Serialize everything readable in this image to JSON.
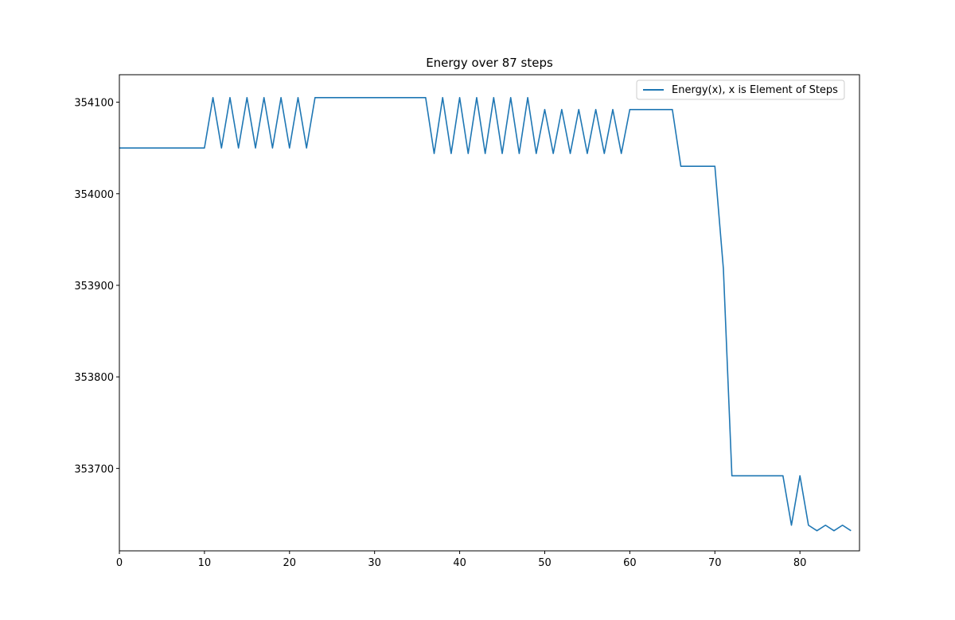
{
  "chart_data": {
    "type": "line",
    "title": "Energy over  87 steps",
    "xlabel": "",
    "ylabel": "",
    "xlim": [
      0,
      87
    ],
    "ylim": [
      353610,
      354130
    ],
    "x_ticks": [
      0,
      10,
      20,
      30,
      40,
      50,
      60,
      70,
      80
    ],
    "y_ticks": [
      353700,
      353800,
      353900,
      354000,
      354100
    ],
    "grid": false,
    "legend_position": "top-right",
    "series": [
      {
        "name": "Energy(x), x is Element of Steps",
        "color": "#1f77b4",
        "x": [
          0,
          1,
          2,
          3,
          4,
          5,
          6,
          7,
          8,
          9,
          10,
          11,
          12,
          13,
          14,
          15,
          16,
          17,
          18,
          19,
          20,
          21,
          22,
          23,
          24,
          25,
          26,
          27,
          28,
          29,
          30,
          31,
          32,
          33,
          34,
          35,
          36,
          37,
          38,
          39,
          40,
          41,
          42,
          43,
          44,
          45,
          46,
          47,
          48,
          49,
          50,
          51,
          52,
          53,
          54,
          55,
          56,
          57,
          58,
          59,
          60,
          61,
          62,
          63,
          64,
          65,
          66,
          67,
          68,
          69,
          70,
          71,
          72,
          73,
          74,
          75,
          76,
          77,
          78,
          79,
          80,
          81,
          82,
          83,
          84,
          85,
          86
        ],
        "y": [
          354050,
          354050,
          354050,
          354050,
          354050,
          354050,
          354050,
          354050,
          354050,
          354050,
          354050,
          354105,
          354050,
          354105,
          354050,
          354105,
          354050,
          354105,
          354050,
          354105,
          354050,
          354105,
          354050,
          354105,
          354105,
          354105,
          354105,
          354105,
          354105,
          354105,
          354105,
          354105,
          354105,
          354105,
          354105,
          354105,
          354105,
          354044,
          354105,
          354044,
          354105,
          354044,
          354105,
          354044,
          354105,
          354044,
          354105,
          354044,
          354105,
          354044,
          354092,
          354044,
          354092,
          354044,
          354092,
          354044,
          354092,
          354044,
          354092,
          354044,
          354092,
          354092,
          354092,
          354092,
          354092,
          354092,
          354030,
          354030,
          354030,
          354030,
          354030,
          353918,
          353692,
          353692,
          353692,
          353692,
          353692,
          353692,
          353692,
          353638,
          353692,
          353638,
          353632,
          353638,
          353632,
          353638,
          353632
        ]
      }
    ]
  }
}
